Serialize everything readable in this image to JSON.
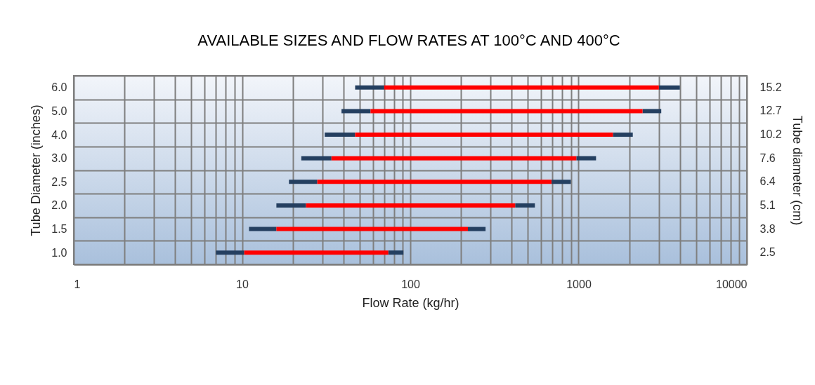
{
  "chart_data": {
    "type": "bar",
    "orientation": "horizontal",
    "title": "AVAILABLE SIZES AND FLOW RATES AT 100°C AND 400°C",
    "xlabel": "Flow Rate (kg/hr)",
    "ylabel": "Tube Diameter (inches)",
    "y2label": "Tube diameter (cm)",
    "categories": [
      "6.0",
      "5.0",
      "4.0",
      "3.0",
      "2.5",
      "2.0",
      "1.5",
      "1.0"
    ],
    "y2_categories": [
      "15.2",
      "12.7",
      "10.2",
      "7.6",
      "6.4",
      "5.1",
      "3.8",
      "2.5"
    ],
    "series": [
      {
        "color": "#243f60",
        "base": [
          47,
          39,
          31,
          22.5,
          19,
          16,
          11,
          7
        ],
        "values": [
          23,
          19,
          16,
          11.5,
          9,
          8,
          5,
          3.3
        ]
      },
      {
        "color": "#243f60",
        "base": [
          3000,
          2400,
          1600,
          970,
          690,
          420,
          220,
          74
        ],
        "values": [
          1000,
          700,
          500,
          300,
          210,
          130,
          60,
          17
        ]
      },
      {
        "color": "#ff0000",
        "base": [
          70,
          58,
          47,
          34,
          28,
          24,
          16,
          10.3
        ],
        "values": [
          2930,
          2342,
          1553,
          936,
          662,
          396,
          204,
          63.7
        ]
      }
    ],
    "log": "x",
    "xlim": [
      1,
      10000
    ],
    "xticks": [
      1,
      {
        "value": 2,
        "label": null
      },
      {
        "value": 3,
        "label": null
      },
      {
        "value": 4,
        "label": null
      },
      {
        "value": 5,
        "label": null
      },
      {
        "value": 6,
        "label": null
      },
      {
        "value": 7,
        "label": null
      },
      {
        "value": 8,
        "label": null
      },
      {
        "value": 9,
        "label": null
      },
      10,
      {
        "value": 20,
        "label": null
      },
      {
        "value": 30,
        "label": null
      },
      {
        "value": 40,
        "label": null
      },
      {
        "value": 50,
        "label": null
      },
      {
        "value": 60,
        "label": null
      },
      {
        "value": 70,
        "label": null
      },
      {
        "value": 80,
        "label": null
      },
      {
        "value": 90,
        "label": null
      },
      100,
      {
        "value": 200,
        "label": null
      },
      {
        "value": 300,
        "label": null
      },
      {
        "value": 400,
        "label": null
      },
      {
        "value": 500,
        "label": null
      },
      {
        "value": 600,
        "label": null
      },
      {
        "value": 700,
        "label": null
      },
      {
        "value": 800,
        "label": null
      },
      {
        "value": 900,
        "label": null
      },
      1000,
      {
        "value": 2000,
        "label": null
      },
      {
        "value": 3000,
        "label": null
      },
      {
        "value": 4000,
        "label": null
      },
      {
        "value": 5000,
        "label": null
      },
      {
        "value": 6000,
        "label": null
      },
      {
        "value": 7000,
        "label": null
      },
      {
        "value": 8000,
        "label": null
      },
      {
        "value": 9000,
        "label": null
      },
      10000
    ],
    "grid": true
  }
}
